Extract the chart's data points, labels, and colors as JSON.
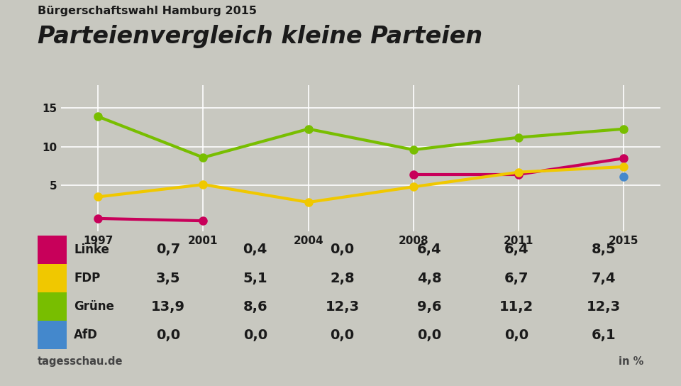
{
  "title": "Parteienvergleich kleine Parteien",
  "subtitle": "Bürgerschaftswahl Hamburg 2015",
  "source": "tagesschau.de",
  "unit": "in %",
  "years": [
    1997,
    2001,
    2004,
    2008,
    2011,
    2015
  ],
  "series": [
    {
      "name": "Linke",
      "color": "#c8005a",
      "values": [
        0.7,
        0.4,
        0.0,
        6.4,
        6.4,
        8.5
      ]
    },
    {
      "name": "FDP",
      "color": "#f0c800",
      "values": [
        3.5,
        5.1,
        2.8,
        4.8,
        6.7,
        7.4
      ]
    },
    {
      "name": "Grüne",
      "color": "#78be00",
      "values": [
        13.9,
        8.6,
        12.3,
        9.6,
        11.2,
        12.3
      ]
    },
    {
      "name": "AfD",
      "color": "#4488cc",
      "values": [
        0.0,
        0.0,
        0.0,
        0.0,
        0.0,
        6.1
      ]
    }
  ],
  "yticks": [
    5,
    10,
    15
  ],
  "ylim": [
    -1,
    18
  ],
  "background_color": "#c8c8c0",
  "chart_bg_color": "#c8c8c0",
  "table_bg_color": "#ffffff",
  "table_values": [
    [
      "0,7",
      "0,4",
      "0,0",
      "6,4",
      "6,4",
      "8,5"
    ],
    [
      "3,5",
      "5,1",
      "2,8",
      "4,8",
      "6,7",
      "7,4"
    ],
    [
      "13,9",
      "8,6",
      "12,3",
      "9,6",
      "11,2",
      "12,3"
    ],
    [
      "0,0",
      "0,0",
      "0,0",
      "0,0",
      "0,0",
      "6,1"
    ]
  ],
  "grid_color": "#ffffff",
  "text_color": "#1a1a1a",
  "source_color": "#444444"
}
